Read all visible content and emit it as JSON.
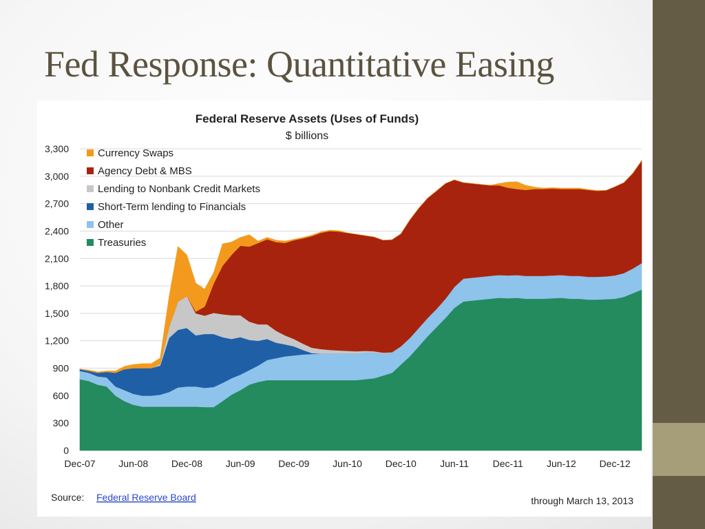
{
  "slide": {
    "title": "Fed Response: Quantitative Easing"
  },
  "chart_data": {
    "type": "area",
    "stacked": true,
    "title": "Federal Reserve Assets (Uses of Funds)",
    "subtitle": "$ billions",
    "xlabel": "",
    "ylabel": "",
    "ylim": [
      0,
      3300
    ],
    "yticks": [
      "0",
      "300",
      "600",
      "900",
      "1,200",
      "1,500",
      "1,800",
      "2,100",
      "2,400",
      "2,700",
      "3,000",
      "3,300"
    ],
    "grid": true,
    "legend_position": "top-left",
    "x": [
      "2007-12",
      "2008-01",
      "2008-02",
      "2008-03",
      "2008-04",
      "2008-05",
      "2008-06",
      "2008-07",
      "2008-08",
      "2008-09",
      "2008-10",
      "2008-11",
      "2008-12",
      "2009-01",
      "2009-02",
      "2009-03",
      "2009-04",
      "2009-05",
      "2009-06",
      "2009-07",
      "2009-08",
      "2009-09",
      "2009-10",
      "2009-11",
      "2009-12",
      "2010-01",
      "2010-02",
      "2010-03",
      "2010-04",
      "2010-05",
      "2010-06",
      "2010-07",
      "2010-08",
      "2010-09",
      "2010-10",
      "2010-11",
      "2010-12",
      "2011-01",
      "2011-02",
      "2011-03",
      "2011-04",
      "2011-05",
      "2011-06",
      "2011-07",
      "2011-08",
      "2011-09",
      "2011-10",
      "2011-11",
      "2011-12",
      "2012-01",
      "2012-02",
      "2012-03",
      "2012-04",
      "2012-05",
      "2012-06",
      "2012-07",
      "2012-08",
      "2012-09",
      "2012-10",
      "2012-11",
      "2012-12",
      "2013-01",
      "2013-02",
      "2013-03"
    ],
    "xtick_labels": [
      "Dec-07",
      "Jun-08",
      "Dec-08",
      "Jun-09",
      "Dec-09",
      "Jun-10",
      "Dec-10",
      "Jun-11",
      "Dec-11",
      "Jun-12",
      "Dec-12"
    ],
    "series": [
      {
        "name": "Treasuries",
        "color": "#238b5e",
        "values": [
          780,
          760,
          720,
          700,
          600,
          540,
          500,
          480,
          480,
          480,
          480,
          480,
          480,
          480,
          475,
          475,
          540,
          610,
          660,
          720,
          750,
          770,
          770,
          770,
          770,
          770,
          770,
          770,
          770,
          770,
          770,
          770,
          780,
          790,
          820,
          850,
          940,
          1030,
          1140,
          1250,
          1350,
          1450,
          1560,
          1630,
          1640,
          1650,
          1660,
          1670,
          1665,
          1670,
          1660,
          1660,
          1660,
          1665,
          1670,
          1660,
          1660,
          1650,
          1650,
          1655,
          1660,
          1680,
          1720,
          1760
        ]
      },
      {
        "name": "Other",
        "color": "#8ec3ec",
        "values": [
          90,
          90,
          90,
          100,
          100,
          120,
          120,
          120,
          120,
          130,
          160,
          210,
          220,
          220,
          210,
          220,
          200,
          180,
          170,
          160,
          180,
          220,
          240,
          260,
          270,
          280,
          285,
          290,
          290,
          290,
          290,
          290,
          290,
          280,
          240,
          220,
          200,
          200,
          200,
          200,
          200,
          210,
          230,
          250,
          250,
          250,
          250,
          250,
          250,
          250,
          250,
          250,
          250,
          250,
          250,
          250,
          250,
          250,
          250,
          250,
          255,
          260,
          270,
          290
        ]
      },
      {
        "name": "Short-Term lending to Financials",
        "color": "#1f5fa6",
        "values": [
          20,
          20,
          40,
          60,
          150,
          230,
          280,
          300,
          300,
          320,
          590,
          630,
          640,
          560,
          590,
          580,
          500,
          430,
          410,
          330,
          270,
          230,
          170,
          130,
          100,
          50,
          10,
          0,
          0,
          0,
          0,
          0,
          0,
          0,
          0,
          0,
          0,
          0,
          0,
          0,
          0,
          0,
          0,
          0,
          0,
          0,
          0,
          0,
          0,
          0,
          0,
          0,
          0,
          0,
          0,
          0,
          0,
          0,
          0,
          0,
          0,
          0,
          0,
          0
        ]
      },
      {
        "name": "Lending to Nonbank Credit Markets",
        "color": "#c7c7c7",
        "values": [
          0,
          0,
          0,
          0,
          0,
          0,
          0,
          0,
          0,
          20,
          120,
          310,
          350,
          240,
          200,
          230,
          250,
          260,
          240,
          200,
          180,
          160,
          130,
          100,
          80,
          70,
          60,
          50,
          40,
          35,
          30,
          25,
          20,
          15,
          10,
          5,
          0,
          0,
          0,
          0,
          0,
          0,
          0,
          0,
          0,
          0,
          0,
          0,
          0,
          0,
          0,
          0,
          0,
          0,
          0,
          0,
          0,
          0,
          0,
          0,
          0,
          0,
          0,
          0
        ]
      },
      {
        "name": "Agency Debt & MBS",
        "color": "#a8230d",
        "values": [
          0,
          0,
          0,
          0,
          0,
          0,
          0,
          0,
          0,
          0,
          0,
          0,
          0,
          20,
          100,
          320,
          530,
          660,
          760,
          820,
          890,
          930,
          970,
          1010,
          1080,
          1150,
          1220,
          1270,
          1300,
          1300,
          1290,
          1280,
          1260,
          1250,
          1230,
          1230,
          1230,
          1290,
          1310,
          1310,
          1290,
          1260,
          1170,
          1050,
          1030,
          1010,
          990,
          980,
          960,
          940,
          940,
          950,
          950,
          950,
          940,
          950,
          950,
          950,
          940,
          940,
          970,
          990,
          1040,
          1120
        ]
      },
      {
        "name": "Currency Swaps",
        "color": "#f39a1e",
        "values": [
          0,
          10,
          10,
          10,
          20,
          30,
          40,
          50,
          50,
          60,
          330,
          600,
          450,
          310,
          190,
          120,
          240,
          140,
          90,
          130,
          20,
          20,
          20,
          20,
          10,
          10,
          10,
          10,
          10,
          10,
          0,
          0,
          0,
          0,
          0,
          0,
          0,
          0,
          0,
          0,
          0,
          0,
          0,
          0,
          0,
          0,
          0,
          20,
          60,
          80,
          50,
          20,
          10,
          10,
          10,
          10,
          10,
          5,
          5,
          0,
          0,
          0,
          0,
          0
        ]
      }
    ]
  },
  "footer": {
    "source_label": "Source:",
    "source_link": "Federal Reserve Board",
    "through": "through March 13, 2013"
  }
}
